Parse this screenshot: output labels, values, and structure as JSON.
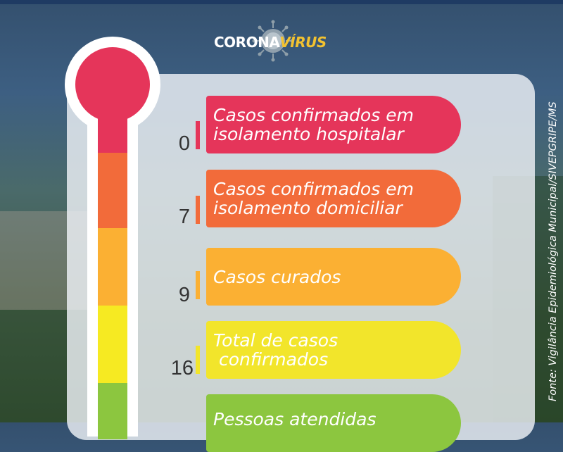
{
  "logo": {
    "part1": "CORONA",
    "part2": "VÍRUS",
    "icon": "virus-icon"
  },
  "colors": {
    "red": "#e5355a",
    "orange": "#f26b3a",
    "amber": "#fbb033",
    "yellow": "#f2e52b",
    "green": "#8cc63f"
  },
  "rows": [
    {
      "value": "0",
      "line1": "Casos confirmados em",
      "line2": "isolamento hospitalar"
    },
    {
      "value": "7",
      "line1": "Casos confirmados em",
      "line2": "isolamento domiciliar"
    },
    {
      "value": "9",
      "line1": "Casos curados",
      "line2": ""
    },
    {
      "value": "16",
      "line1": "Total de casos",
      "line2": " confirmados"
    },
    {
      "value": "",
      "line1": "Pessoas atendidas",
      "line2": ""
    }
  ],
  "source": "Fonte: Vigilância Epidemiológica Municipal/SIVEPGRIPE/MS"
}
